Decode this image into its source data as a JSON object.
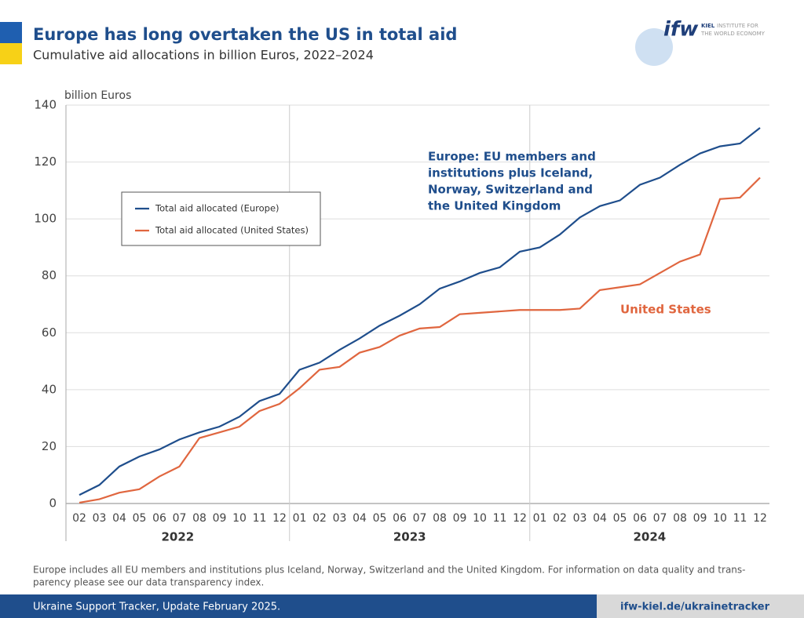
{
  "header": {
    "title": "Europe has long overtaken the US in total aid",
    "subtitle": "Cumulative aid allocations in billion Euros, 2022–2024",
    "logo": {
      "mark": "ifw",
      "name_bold": "KIEL",
      "name_rest": "INSTITUTE FOR",
      "name_line2": "THE WORLD ECONOMY"
    }
  },
  "chart_data": {
    "type": "line",
    "y_label": "billion Euros",
    "groups": [
      {
        "name": "2022",
        "categories": [
          "02",
          "03",
          "04",
          "05",
          "06",
          "07",
          "08",
          "09",
          "10",
          "11",
          "12"
        ]
      },
      {
        "name": "2023",
        "categories": [
          "01",
          "02",
          "03",
          "04",
          "05",
          "06",
          "07",
          "08",
          "09",
          "10",
          "11",
          "12"
        ]
      },
      {
        "name": "2024",
        "categories": [
          "01",
          "02",
          "03",
          "04",
          "05",
          "06",
          "07",
          "08",
          "09",
          "10",
          "11",
          "12"
        ]
      }
    ],
    "series": [
      {
        "name": "Total aid allocated (Europe)",
        "color": "#1f4e8c",
        "values": [
          3,
          6.5,
          13,
          16.5,
          19,
          22.5,
          25,
          27,
          30.5,
          36,
          38.5,
          47,
          49.5,
          54,
          58,
          62.5,
          66,
          70,
          75.5,
          78,
          81,
          83,
          88.5,
          90,
          94.5,
          100.5,
          104.5,
          106.5,
          112,
          114.5,
          119,
          123,
          125.5,
          126.5,
          132
        ]
      },
      {
        "name": "Total aid allocated (United States)",
        "color": "#e0663f",
        "values": [
          0.3,
          1.5,
          3.8,
          5,
          9.5,
          13,
          23,
          25,
          27,
          32.5,
          35,
          40.5,
          47,
          48,
          53,
          55,
          59,
          61.5,
          62,
          66.5,
          67,
          67.5,
          68,
          68,
          68,
          68.5,
          75,
          76,
          77,
          81,
          85,
          87.5,
          107,
          107.5,
          114.5
        ]
      }
    ],
    "annotations": [
      {
        "lines": [
          "Europe: EU members and",
          "institutions plus Iceland,",
          "Norway, Switzerland and",
          "the United Kingdom"
        ],
        "color": "#1f4e8c"
      },
      {
        "lines": [
          "United States"
        ],
        "color": "#e0663f"
      }
    ],
    "ylim": [
      0,
      140
    ],
    "yticks": [
      0,
      20,
      40,
      60,
      80,
      100,
      120,
      140
    ],
    "grid": true,
    "legend": "upper left"
  },
  "footnote": [
    "Europe includes all EU members and institutions plus Iceland, Norway, Switzerland and the United Kingdom. For information on data quality and trans-",
    "parency please see our data transparency index."
  ],
  "footer": {
    "left": "Ukraine Support Tracker, Update February 2025.",
    "right": "ifw-kiel.de/ukrainetracker"
  }
}
